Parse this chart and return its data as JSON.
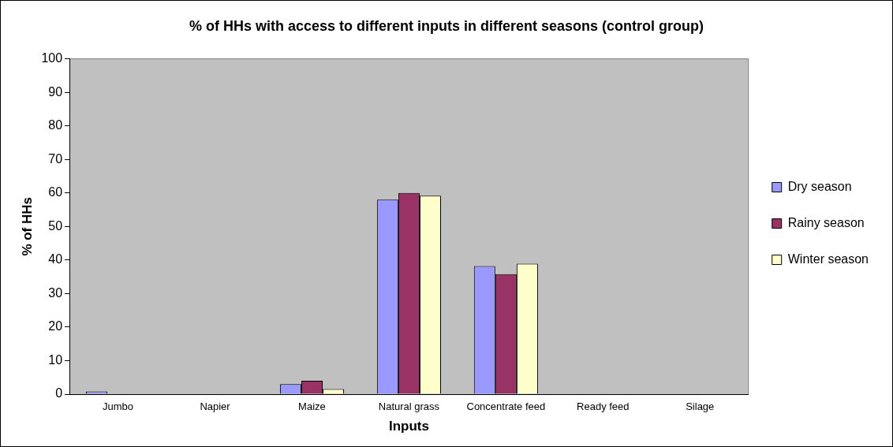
{
  "chart_data": {
    "type": "bar",
    "title": "% of HHs with access to different inputs in different seasons (control group)",
    "xlabel": "Inputs",
    "ylabel": "% of HHs",
    "categories": [
      "Jumbo",
      "Napier",
      "Maize",
      "Natural grass",
      "Concentrate feed",
      "Ready feed",
      "Silage"
    ],
    "series": [
      {
        "name": "Dry season",
        "color": "#9999ff",
        "values": [
          0.8,
          0,
          3,
          58,
          38.2,
          0,
          0
        ]
      },
      {
        "name": "Rainy season",
        "color": "#993366",
        "values": [
          0,
          0,
          4,
          60,
          35.8,
          0,
          0
        ]
      },
      {
        "name": "Winter season",
        "color": "#ffffcc",
        "values": [
          0,
          0,
          1.5,
          59.2,
          38.9,
          0,
          0
        ]
      }
    ],
    "ylim": [
      0,
      100
    ],
    "yticks": [
      0,
      10,
      20,
      30,
      40,
      50,
      60,
      70,
      80,
      90,
      100
    ],
    "grid": false,
    "legend": "right"
  }
}
